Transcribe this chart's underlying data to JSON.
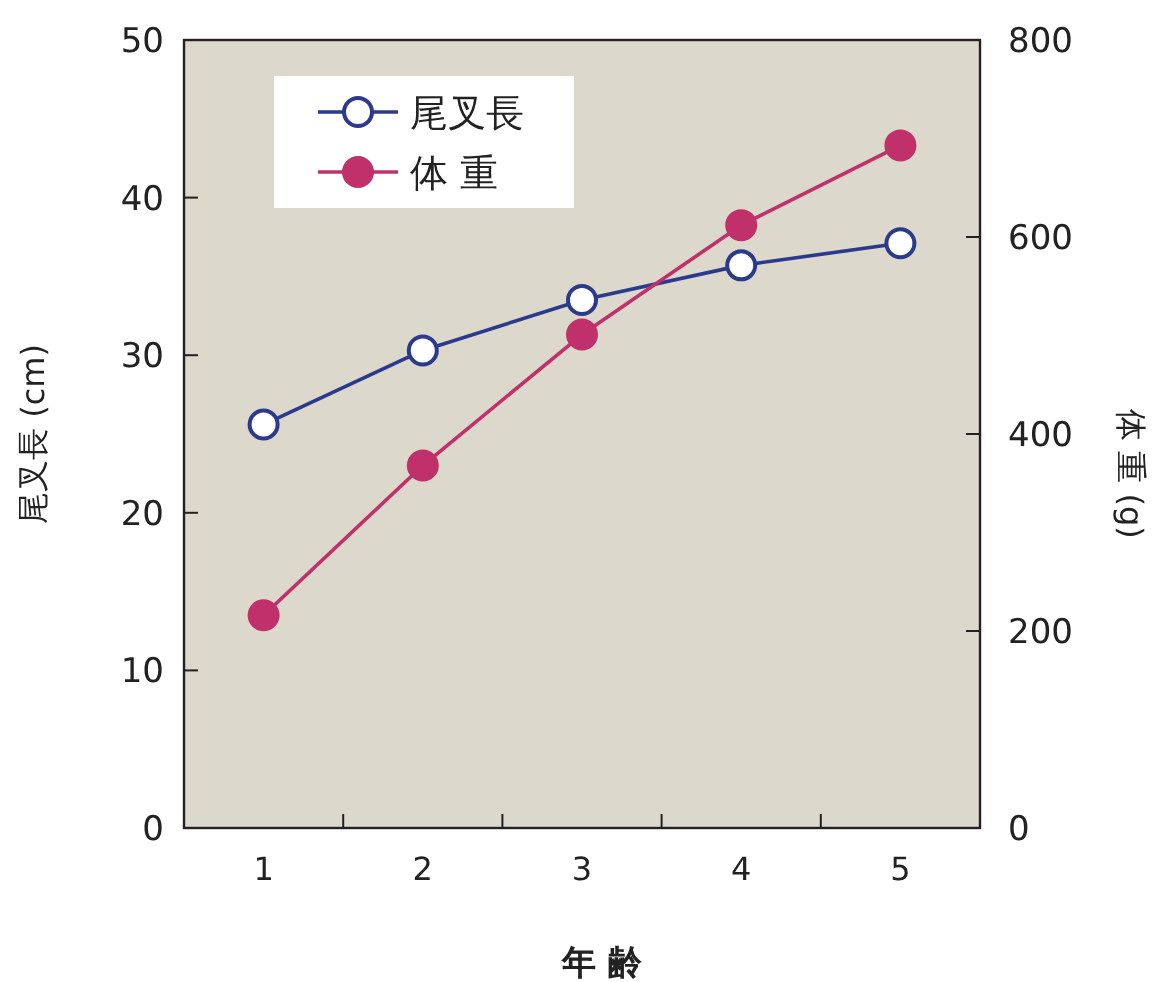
{
  "chart_data": {
    "type": "line",
    "xlabel": "年 齢",
    "ylabel": "尾叉長 (cm)",
    "y2label": "体 重 (g)",
    "categories": [
      "1",
      "2",
      "3",
      "4",
      "5"
    ],
    "series": [
      {
        "name": "尾叉長",
        "color": "#2b3a8c",
        "values": [
          25.6,
          30.3,
          33.5,
          35.7,
          37.1
        ]
      },
      {
        "name": "体 重",
        "color": "#c0306a",
        "axis": "y2",
        "values": [
          216,
          368,
          501,
          612,
          693
        ]
      }
    ],
    "ylim": [
      0,
      50
    ],
    "yticks": [
      0,
      10,
      20,
      30,
      40,
      50
    ],
    "y2lim": [
      0,
      800
    ],
    "y2ticks": [
      0,
      200,
      400,
      600,
      800
    ],
    "legend": "top left",
    "marker": "circle",
    "line_style": "solid",
    "grid": false
  }
}
